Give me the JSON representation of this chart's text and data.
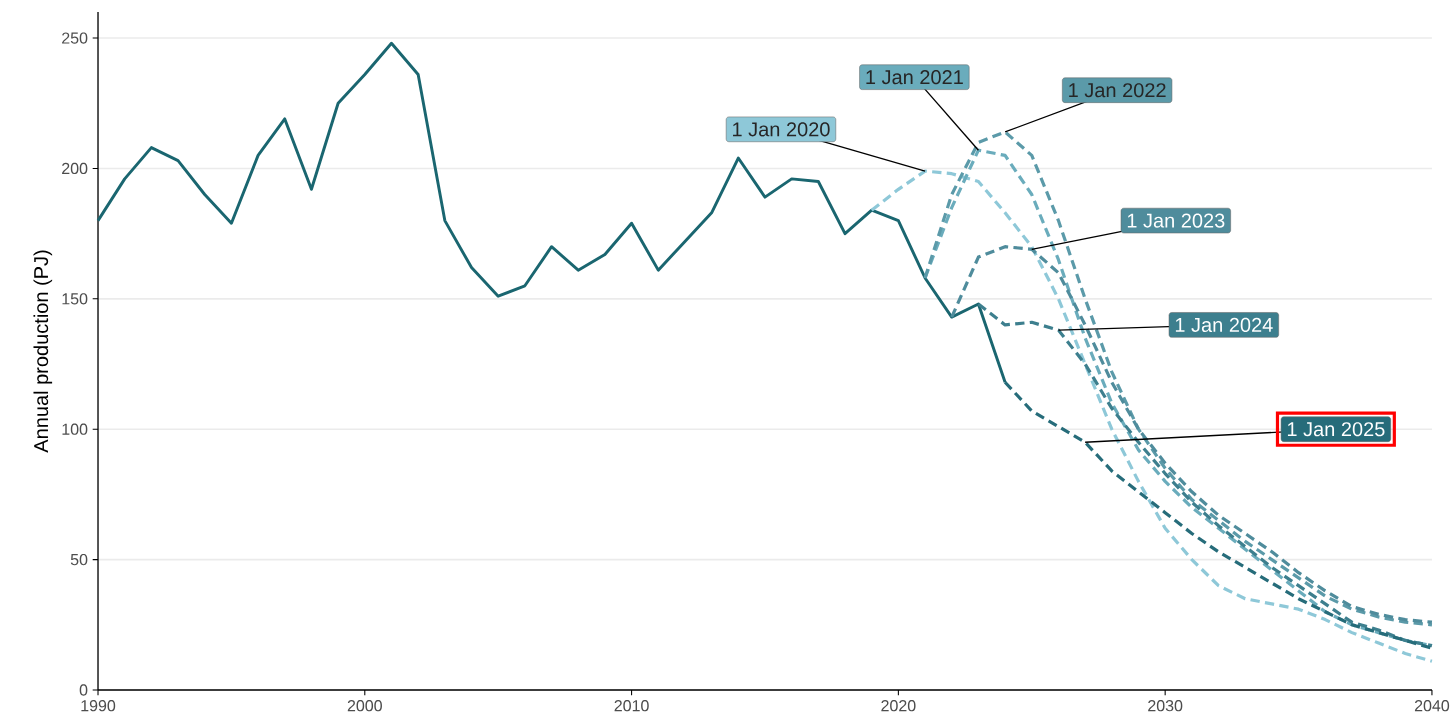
{
  "chart_data": {
    "type": "line",
    "ylabel": "Annual production (PJ)",
    "xlim": [
      1990,
      2040
    ],
    "ylim": [
      0,
      260
    ],
    "xticks": [
      1990,
      2000,
      2010,
      2020,
      2030,
      2040
    ],
    "yticks": [
      0,
      50,
      100,
      150,
      200,
      250
    ],
    "grid": "y",
    "series": [
      {
        "color": "#1a6670",
        "line_style": "solid",
        "x": [
          1990,
          1991,
          1992,
          1993,
          1994,
          1995,
          1996,
          1997,
          1998,
          1999,
          2000,
          2001,
          2002,
          2003,
          2004,
          2005,
          2006,
          2007,
          2008,
          2009,
          2010,
          2011,
          2012,
          2013,
          2014,
          2015,
          2016,
          2017,
          2018,
          2019,
          2020,
          2021,
          2022,
          2023,
          2024
        ],
        "values": [
          180,
          196,
          208,
          203,
          190,
          179,
          205,
          219,
          192,
          225,
          236,
          248,
          236,
          180,
          162,
          151,
          155,
          170,
          161,
          167,
          179,
          161,
          172,
          183,
          204,
          189,
          196,
          195,
          175,
          184,
          180,
          158,
          143,
          148,
          118
        ]
      },
      {
        "color": "#8ec8d8",
        "line_style": "dashed",
        "x": [
          2019,
          2020,
          2021,
          2022,
          2023,
          2024,
          2025,
          2026,
          2027,
          2028,
          2029,
          2030,
          2031,
          2032,
          2033,
          2034,
          2035,
          2036,
          2037,
          2038,
          2039,
          2040
        ],
        "values": [
          184,
          192,
          199,
          198,
          195,
          183,
          170,
          150,
          125,
          100,
          80,
          62,
          50,
          40,
          35,
          33,
          31,
          27,
          22,
          18,
          14,
          11
        ]
      },
      {
        "color": "#6aacbc",
        "line_style": "dashed",
        "x": [
          2021,
          2022,
          2023,
          2024,
          2025,
          2026,
          2027,
          2028,
          2029,
          2030,
          2031,
          2032,
          2033,
          2034,
          2035,
          2036,
          2037,
          2038,
          2039,
          2040
        ],
        "values": [
          158,
          185,
          207,
          205,
          190,
          165,
          135,
          110,
          92,
          80,
          70,
          62,
          54,
          46,
          38,
          30,
          25,
          22,
          19,
          17
        ]
      },
      {
        "color": "#5b9aa9",
        "line_style": "dashed",
        "x": [
          2021,
          2022,
          2023,
          2024,
          2025,
          2026,
          2027,
          2028,
          2029,
          2030,
          2031,
          2032,
          2033,
          2034,
          2035,
          2036,
          2037,
          2038,
          2039,
          2040
        ],
        "values": [
          158,
          190,
          210,
          214,
          205,
          180,
          150,
          122,
          100,
          85,
          73,
          65,
          57,
          50,
          43,
          36,
          31,
          28,
          26,
          25
        ]
      },
      {
        "color": "#4f8c9c",
        "line_style": "dashed",
        "x": [
          2022,
          2023,
          2024,
          2025,
          2026,
          2027,
          2028,
          2029,
          2030,
          2031,
          2032,
          2033,
          2034,
          2035,
          2036,
          2037,
          2038,
          2039,
          2040
        ],
        "values": [
          143,
          166,
          170,
          169,
          160,
          140,
          118,
          100,
          87,
          76,
          67,
          60,
          53,
          45,
          38,
          32,
          29,
          27,
          26
        ]
      },
      {
        "color": "#3d7f8e",
        "line_style": "dashed",
        "x": [
          2023,
          2024,
          2025,
          2026,
          2027,
          2028,
          2029,
          2030,
          2031,
          2032,
          2033,
          2034,
          2035,
          2036,
          2037,
          2038,
          2039,
          2040
        ],
        "values": [
          148,
          140,
          141,
          138,
          125,
          108,
          95,
          83,
          72,
          63,
          55,
          47,
          40,
          33,
          26,
          23,
          19,
          17
        ]
      },
      {
        "color": "#266c7a",
        "line_style": "dashed",
        "x": [
          2024,
          2025,
          2026,
          2027,
          2028,
          2029,
          2030,
          2031,
          2032,
          2033,
          2034,
          2035,
          2036,
          2037,
          2038,
          2039,
          2040
        ],
        "values": [
          118,
          107,
          101,
          95,
          84,
          76,
          68,
          60,
          53,
          47,
          41,
          35,
          30,
          25,
          22,
          19,
          16
        ]
      }
    ],
    "annotations": [
      {
        "text": "1 Jan 2020",
        "x": 2021,
        "y": 199
      },
      {
        "text": "1 Jan 2021",
        "x": 2023,
        "y": 207
      },
      {
        "text": "1 Jan 2022",
        "x": 2024,
        "y": 214
      },
      {
        "text": "1 Jan 2023",
        "x": 2025,
        "y": 169
      },
      {
        "text": "1 Jan 2024",
        "x": 2026,
        "y": 138
      },
      {
        "text": "1 Jan 2025",
        "x": 2027,
        "y": 95
      }
    ]
  }
}
